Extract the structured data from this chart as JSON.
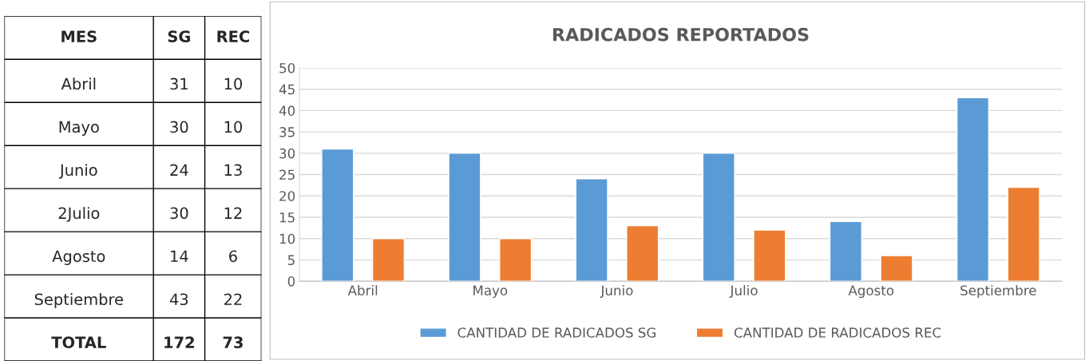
{
  "chart_data": [
    {
      "type": "other",
      "xlabel": "MES",
      "data_labels": true,
      "categories": [
        "Abril",
        "Mayo",
        "Junio",
        "2Julio",
        "Agosto",
        "Septiembre",
        "TOTAL"
      ],
      "series": [
        {
          "name": "SG",
          "values": [
            31,
            30,
            24,
            30,
            14,
            43,
            172
          ]
        },
        {
          "name": "REC",
          "values": [
            10,
            10,
            13,
            12,
            6,
            22,
            73
          ]
        }
      ]
    },
    {
      "type": "bar",
      "title": "RADICADOS REPORTADOS",
      "categories": [
        "Abril",
        "Mayo",
        "Junio",
        "Julio",
        "Agosto",
        "Septiembre"
      ],
      "series": [
        {
          "name": "CANTIDAD DE RADICADOS SG",
          "color": "#5b9bd5",
          "values": [
            31,
            30,
            24,
            30,
            14,
            43
          ]
        },
        {
          "name": "CANTIDAD DE RADICADOS REC",
          "color": "#ed7d31",
          "values": [
            10,
            10,
            13,
            12,
            6,
            22
          ]
        }
      ],
      "ylim": [
        0,
        50
      ],
      "yticks": [
        0,
        5,
        10,
        15,
        20,
        25,
        30,
        35,
        40,
        45,
        50
      ],
      "grid": "y",
      "legend": "bottom"
    }
  ]
}
